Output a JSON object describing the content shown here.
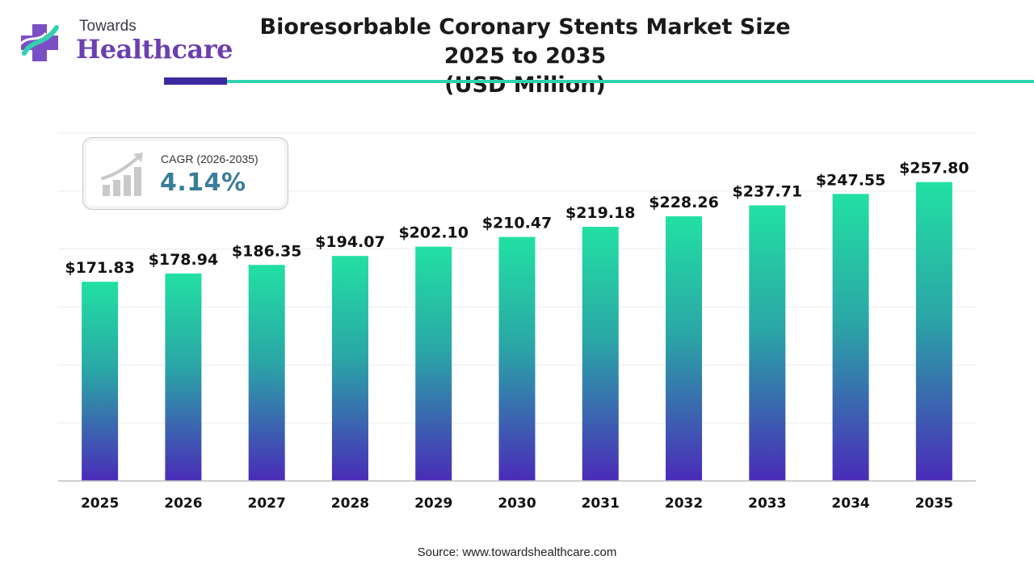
{
  "brand": {
    "line1": "Towards",
    "line2": "Healthcare"
  },
  "cagr": {
    "label": "CAGR (2026-2035)",
    "value": "4.14%"
  },
  "source": "Source: www.towardshealthcare.com",
  "colors": {
    "bar_top": "#22e0a3",
    "bar_bottom": "#4a2bb8",
    "brand_purple": "#6b3fb0",
    "accent_teal": "#31d1b0",
    "cagr_value": "#3a7d99"
  },
  "chart_data": {
    "type": "bar",
    "title": "Bioresorbable Coronary Stents Market Size 2025 to 2035 (USD Million)",
    "title_lines": [
      "Bioresorbable Coronary Stents Market Size 2025 to 2035",
      "(USD Million)"
    ],
    "categories": [
      "2025",
      "2026",
      "2027",
      "2028",
      "2029",
      "2030",
      "2031",
      "2032",
      "2033",
      "2034",
      "2035"
    ],
    "values": [
      171.83,
      178.94,
      186.35,
      194.07,
      202.1,
      210.47,
      219.18,
      228.26,
      237.71,
      247.55,
      257.8
    ],
    "labels": [
      "$171.83",
      "$178.94",
      "$186.35",
      "$194.07",
      "$202.10",
      "$210.47",
      "$219.18",
      "$228.26",
      "$237.71",
      "$247.55",
      "$257.80"
    ],
    "ylim": [
      0,
      300
    ],
    "grid": true,
    "legend": "none"
  }
}
